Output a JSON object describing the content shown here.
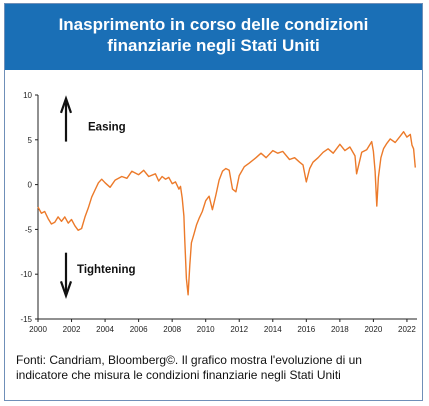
{
  "header": {
    "title_line1": "Inasprimento in corso delle condizioni",
    "title_line2": "finanziarie negli Stati Uniti"
  },
  "caption": {
    "line1": "Fonti: Candriam, Bloomberg©. Il grafico mostra l'evoluzione di un",
    "line2": "indicatore che misura le condizioni finanziarie negli Stati Uniti"
  },
  "colors": {
    "header_bg": "#1a6fb6",
    "line": "#ec7a2a",
    "axis": "#222222"
  },
  "chart_data": {
    "type": "line",
    "title": "",
    "xlabel": "",
    "ylabel": "",
    "xlim": [
      2000,
      2022.6
    ],
    "ylim": [
      -15,
      10
    ],
    "x_ticks": [
      2000,
      2002,
      2004,
      2006,
      2008,
      2010,
      2012,
      2014,
      2016,
      2018,
      2020,
      2022
    ],
    "y_ticks": [
      10,
      5,
      0,
      -5,
      -10,
      -15
    ],
    "grid": false,
    "annotations": [
      {
        "text": "Easing",
        "arrow": "up"
      },
      {
        "text": "Tightening",
        "arrow": "down"
      }
    ],
    "series": [
      {
        "x": [
          2000.0,
          2000.2,
          2000.4,
          2000.6,
          2000.8,
          2001.0,
          2001.2,
          2001.4,
          2001.6,
          2001.8,
          2002.0,
          2002.2,
          2002.4,
          2002.6,
          2002.8,
          2003.0,
          2003.2,
          2003.4,
          2003.6,
          2003.8,
          2004.0,
          2004.3,
          2004.6,
          2005.0,
          2005.3,
          2005.6,
          2006.0,
          2006.3,
          2006.6,
          2007.0,
          2007.2,
          2007.4,
          2007.6,
          2007.8,
          2008.0,
          2008.2,
          2008.4,
          2008.5,
          2008.6,
          2008.7,
          2008.75,
          2008.85,
          2008.95,
          2009.05,
          2009.15,
          2009.3,
          2009.45,
          2009.6,
          2009.8,
          2010.0,
          2010.2,
          2010.4,
          2010.6,
          2010.8,
          2011.0,
          2011.2,
          2011.4,
          2011.6,
          2011.8,
          2012.0,
          2012.3,
          2012.6,
          2013.0,
          2013.3,
          2013.6,
          2014.0,
          2014.3,
          2014.6,
          2015.0,
          2015.3,
          2015.6,
          2015.8,
          2016.0,
          2016.2,
          2016.4,
          2016.7,
          2017.0,
          2017.3,
          2017.6,
          2018.0,
          2018.3,
          2018.6,
          2018.9,
          2019.0,
          2019.3,
          2019.6,
          2019.9,
          2020.0,
          2020.1,
          2020.2,
          2020.3,
          2020.45,
          2020.6,
          2020.8,
          2021.0,
          2021.3,
          2021.6,
          2021.8,
          2022.0,
          2022.2,
          2022.3,
          2022.4,
          2022.5
        ],
        "y": [
          -2.5,
          -3.2,
          -3.0,
          -3.8,
          -4.4,
          -4.2,
          -3.6,
          -4.1,
          -3.6,
          -4.3,
          -3.9,
          -4.6,
          -5.1,
          -4.9,
          -3.6,
          -2.6,
          -1.4,
          -0.6,
          0.2,
          0.6,
          0.2,
          -0.3,
          0.5,
          0.9,
          0.7,
          1.5,
          1.1,
          1.6,
          0.9,
          1.2,
          0.4,
          0.9,
          0.6,
          0.8,
          0.1,
          0.3,
          -0.5,
          -0.2,
          -1.5,
          -3.5,
          -6.0,
          -10.5,
          -12.3,
          -9.0,
          -6.5,
          -5.5,
          -4.5,
          -3.8,
          -3.0,
          -1.8,
          -1.3,
          -2.8,
          -1.2,
          0.5,
          1.5,
          1.8,
          1.6,
          -0.5,
          -0.8,
          1.0,
          2.0,
          2.4,
          3.0,
          3.5,
          3.0,
          3.8,
          3.5,
          3.7,
          2.8,
          3.0,
          2.5,
          2.2,
          0.3,
          1.8,
          2.5,
          3.0,
          3.6,
          4.0,
          3.5,
          4.5,
          3.8,
          4.2,
          3.2,
          1.2,
          3.6,
          3.9,
          4.8,
          3.7,
          1.5,
          -2.4,
          0.8,
          3.0,
          4.0,
          4.6,
          5.1,
          4.7,
          5.4,
          5.9,
          5.3,
          5.6,
          4.4,
          4.0,
          1.9
        ]
      }
    ]
  }
}
